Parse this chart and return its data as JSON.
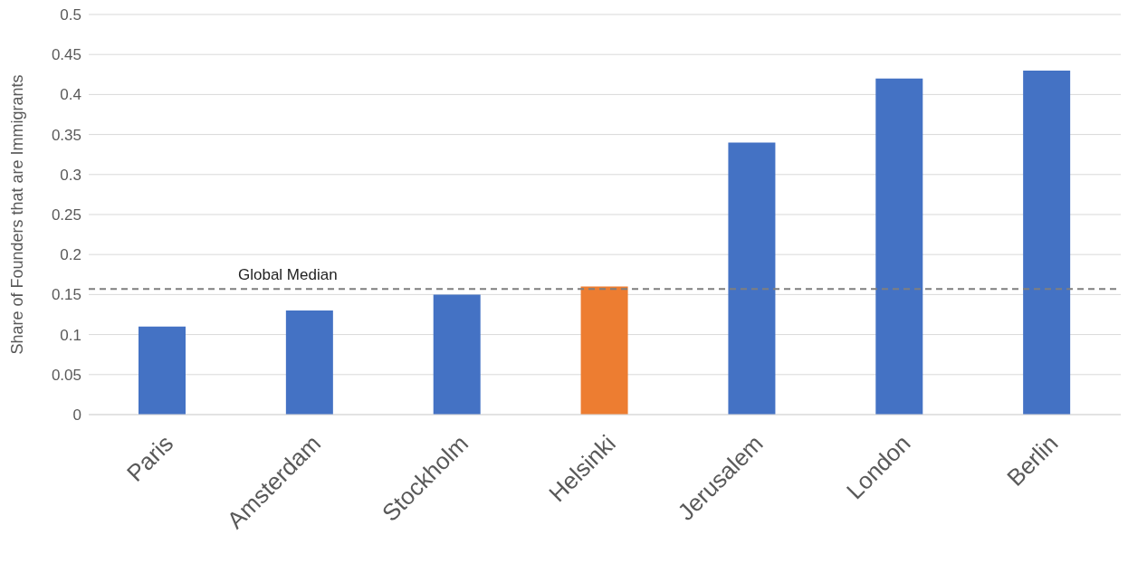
{
  "chart_data": {
    "type": "bar",
    "ylabel": "Share of Founders that are Immigrants",
    "categories": [
      "Paris",
      "Amsterdam",
      "Stockholm",
      "Helsinki",
      "Jerusalem",
      "London",
      "Berlin"
    ],
    "values": [
      0.11,
      0.13,
      0.15,
      0.16,
      0.34,
      0.42,
      0.43
    ],
    "colors": [
      "#4472c4",
      "#4472c4",
      "#4472c4",
      "#ed7d31",
      "#4472c4",
      "#4472c4",
      "#4472c4"
    ],
    "ylim": [
      0,
      0.5
    ],
    "yticks": [
      0,
      0.05,
      0.1,
      0.15,
      0.2,
      0.25,
      0.3,
      0.35,
      0.4,
      0.45,
      0.5
    ],
    "grid": "y",
    "ref_lines": [
      {
        "axis": "y",
        "value": 0.157,
        "label": "Global Median",
        "color": "#7f7f7f",
        "line_style": "dashed"
      }
    ]
  }
}
